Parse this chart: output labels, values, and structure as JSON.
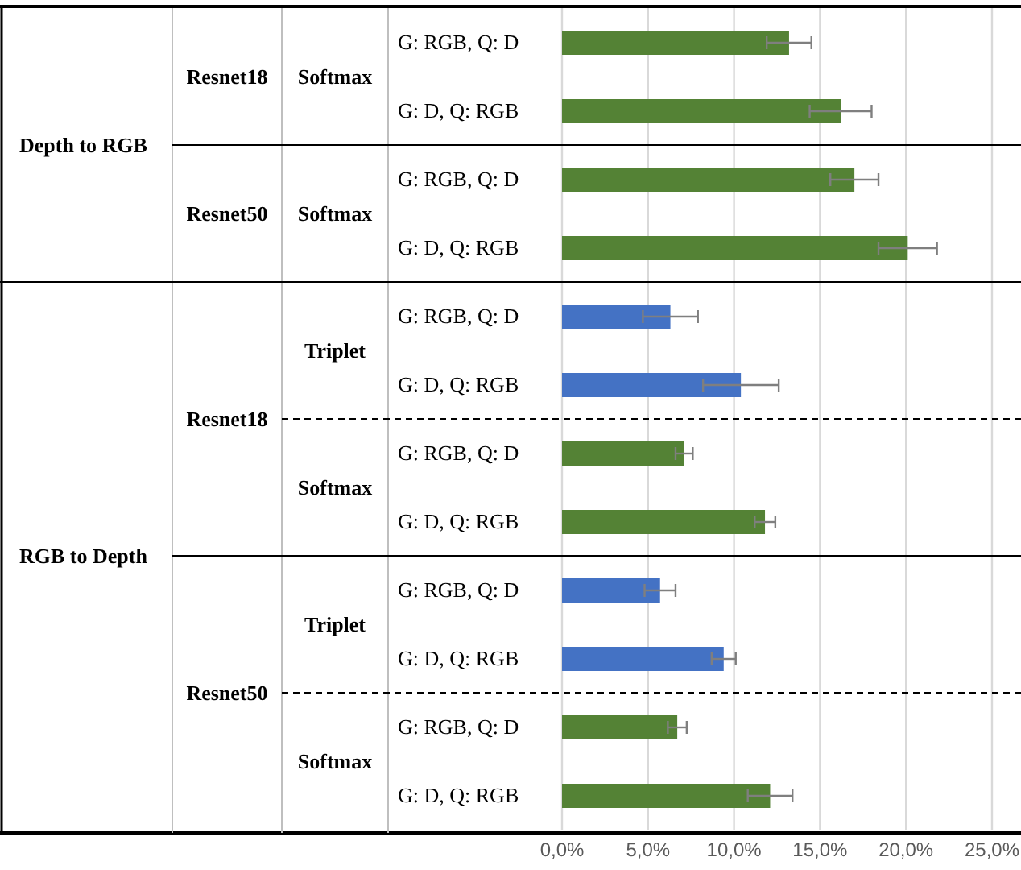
{
  "chart_data": {
    "type": "bar",
    "orientation": "horizontal",
    "categories": [
      "G: RGB, Q: D",
      "G: D, Q: RGB",
      "G: RGB, Q: D",
      "G: D, Q: RGB",
      "G: RGB, Q: D",
      "G: D, Q: RGB",
      "G: RGB, Q: D",
      "G: D, Q: RGB",
      "G: RGB, Q: D",
      "G: D, Q: RGB",
      "G: RGB, Q: D",
      "G: D, Q: RGB"
    ],
    "values": [
      13.2,
      16.2,
      17.0,
      20.1,
      6.3,
      10.4,
      7.1,
      11.8,
      5.7,
      9.4,
      6.7,
      12.1
    ],
    "errors": [
      1.3,
      1.8,
      1.4,
      1.7,
      1.6,
      2.2,
      0.5,
      0.6,
      0.9,
      0.7,
      0.55,
      1.3
    ],
    "colors": [
      "#548235",
      "#548235",
      "#548235",
      "#548235",
      "#4472c4",
      "#4472c4",
      "#548235",
      "#548235",
      "#4472c4",
      "#4472c4",
      "#548235",
      "#548235"
    ],
    "xlim": [
      0,
      25
    ],
    "xticks": [
      {
        "value": 0,
        "label": "0,0%"
      },
      {
        "value": 5,
        "label": "5,0%"
      },
      {
        "value": 10,
        "label": "10,0%"
      },
      {
        "value": 15,
        "label": "15,0%"
      },
      {
        "value": 20,
        "label": "20,0%"
      },
      {
        "value": 25,
        "label": "25,0%"
      }
    ],
    "grid": "x",
    "annotations": [
      "Depth to RGB",
      "Resnet18",
      "Softmax",
      "Resnet50",
      "Softmax",
      "RGB to Depth",
      "Resnet18",
      "Triplet",
      "Softmax",
      "Resnet50",
      "Triplet",
      "Softmax"
    ]
  }
}
